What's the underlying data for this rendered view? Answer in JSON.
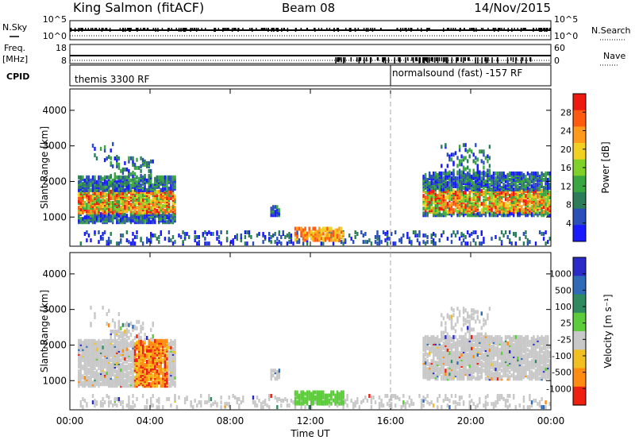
{
  "header": {
    "station": "King Salmon (fitACF)",
    "beam": "Beam 08",
    "date": "14/Nov/2015"
  },
  "strips": {
    "nsky_label": "N.Sky",
    "nsearch_label": "N.Search",
    "left_ticks": [
      "10^5",
      "10^0"
    ],
    "right_ticks": [
      "10^5",
      "10^0"
    ],
    "freq_label": "Freq.",
    "freq_unit": "[MHz]",
    "freq_ticks": [
      "18",
      "8"
    ],
    "nave_label": "Nave",
    "nave_ticks": [
      "60",
      "0"
    ],
    "cpid_label": "CPID",
    "cpid_1": "themis 3300 RF",
    "cpid_2": "normalsound (fast) -157 RF"
  },
  "chart_data": [
    {
      "type": "heatmap",
      "panel": "power",
      "xlabel": "Time UT",
      "ylabel": "Slant Range [km]",
      "xlim": [
        0,
        24
      ],
      "ylim": [
        180,
        4600
      ],
      "x_ticks": [
        "00:00",
        "04:00",
        "08:00",
        "12:00",
        "16:00",
        "20:00",
        "00:00"
      ],
      "y_ticks": [
        1000,
        2000,
        3000,
        4000
      ],
      "colorbar": {
        "label": "Power [dB]",
        "ticks": [
          "4",
          "8",
          "12",
          "16",
          "20",
          "24",
          "28"
        ],
        "range": [
          0,
          32
        ]
      },
      "colors": [
        "#1a1aff",
        "#2b4fb8",
        "#2d7d5a",
        "#3aa640",
        "#7fd12a",
        "#f0d020",
        "#ff9a1a",
        "#ff5a10",
        "#ee1a10"
      ],
      "marker_time": 16
    },
    {
      "type": "heatmap",
      "panel": "velocity",
      "xlabel": "Time UT",
      "ylabel": "Slant Range [km]",
      "xlim": [
        0,
        24
      ],
      "ylim": [
        180,
        4600
      ],
      "x_ticks": [
        "00:00",
        "04:00",
        "08:00",
        "12:00",
        "16:00",
        "20:00",
        "00:00"
      ],
      "y_ticks": [
        1000,
        2000,
        3000,
        4000
      ],
      "colorbar": {
        "label": "Velocity [m s⁻¹]",
        "ticks": [
          "1000",
          "500",
          "100",
          "25",
          "-25",
          "-100",
          "-500",
          "-1000"
        ]
      },
      "colors": [
        "#2a2ac8",
        "#2e6ab8",
        "#2f8a60",
        "#5dcc3a",
        "#c8c8c8",
        "#f0c020",
        "#ff8c10",
        "#ee2010"
      ],
      "marker_time": 16
    }
  ],
  "xaxis_label": "Time UT",
  "time_ticks": [
    "00:00",
    "04:00",
    "08:00",
    "12:00",
    "16:00",
    "20:00",
    "00:00"
  ]
}
